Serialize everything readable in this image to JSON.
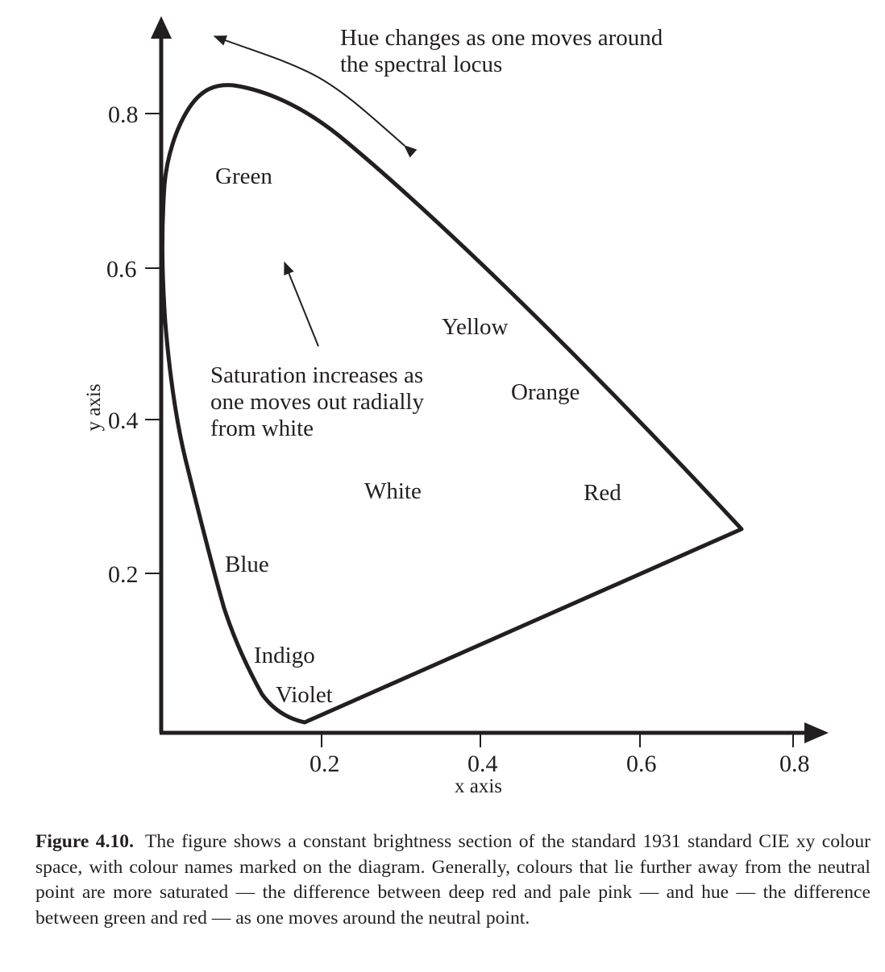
{
  "diagram": {
    "axes": {
      "x_title": "x axis",
      "y_title": "y axis",
      "x_ticks": [
        "0.2",
        "0.4",
        "0.6",
        "0.8"
      ],
      "y_ticks": [
        "0.2",
        "0.4",
        "0.6",
        "0.8"
      ]
    },
    "color_labels": {
      "green": "Green",
      "yellow": "Yellow",
      "orange": "Orange",
      "red": "Red",
      "white": "White",
      "blue": "Blue",
      "indigo": "Indigo",
      "violet": "Violet"
    },
    "annotations": {
      "hue_line1": "Hue changes as one moves around",
      "hue_line2": "the spectral locus",
      "saturation_line1": "Saturation increases as",
      "saturation_line2": "one moves out radially",
      "saturation_line3": "from white"
    }
  },
  "caption": {
    "label": "Figure 4.10.",
    "text": "The figure shows a constant brightness section of the standard 1931 standard CIE xy colour space, with colour names marked on the diagram. Generally, colours that lie further away from the neutral point are more saturated — the difference between deep red and pale pink — and hue — the difference between green and red — as one moves around the neutral point."
  }
}
